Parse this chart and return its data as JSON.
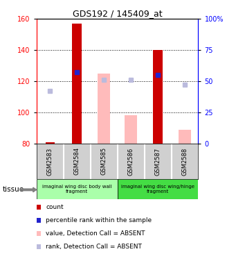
{
  "title": "GDS192 / 145409_at",
  "samples": [
    "GSM2583",
    "GSM2584",
    "GSM2585",
    "GSM2586",
    "GSM2587",
    "GSM2588"
  ],
  "ylim_left": [
    80,
    160
  ],
  "ylim_right": [
    0,
    100
  ],
  "yticks_left": [
    80,
    100,
    120,
    140,
    160
  ],
  "yticks_right": [
    0,
    25,
    50,
    75,
    100
  ],
  "ytick_labels_right": [
    "0",
    "25",
    "50",
    "75",
    "100%"
  ],
  "count_values": [
    81,
    157,
    null,
    null,
    140,
    null
  ],
  "count_color": "#cc0000",
  "percentile_values": [
    null,
    126,
    null,
    null,
    124,
    null
  ],
  "percentile_color": "#2222cc",
  "absent_value_values": [
    null,
    null,
    125,
    98,
    null,
    89
  ],
  "absent_value_color": "#ffbbbb",
  "absent_rank_values": [
    114,
    null,
    121,
    121,
    null,
    118
  ],
  "absent_rank_color": "#bbbbdd",
  "bar_width": 0.35,
  "absent_bar_width": 0.45,
  "grid_dotted_at": [
    100,
    120,
    140
  ],
  "tissue_group_colors": [
    "#aaffaa",
    "#44dd44"
  ],
  "tissue_group_texts": [
    "imaginal wing disc body wall\nfragment",
    "imaginal wing disc wing/hinge\nfragment"
  ],
  "tissue_group_ranges": [
    [
      0,
      2
    ],
    [
      3,
      5
    ]
  ],
  "tissue_label": "tissue",
  "legend_items": [
    {
      "color": "#cc0000",
      "label": "count"
    },
    {
      "color": "#2222cc",
      "label": "percentile rank within the sample"
    },
    {
      "color": "#ffbbbb",
      "label": "value, Detection Call = ABSENT"
    },
    {
      "color": "#bbbbdd",
      "label": "rank, Detection Call = ABSENT"
    }
  ],
  "background_color": "#ffffff"
}
